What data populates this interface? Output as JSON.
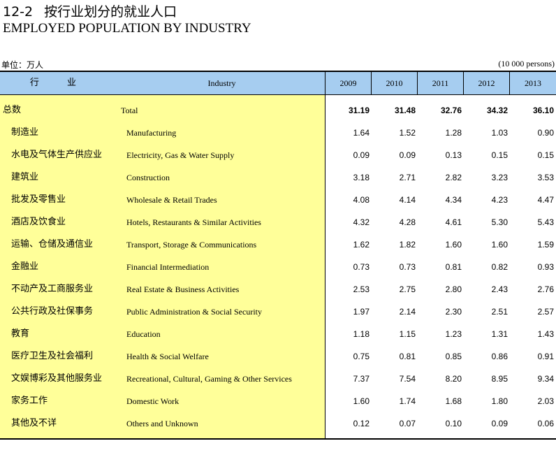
{
  "header": {
    "table_number": "12-2",
    "title_cn": "按行业划分的就业人口",
    "title_en": "EMPLOYED POPULATION BY INDUSTRY",
    "unit_cn": "单位：万人",
    "unit_en": "(10 000 persons)"
  },
  "columns": {
    "industry_cn": "行 业",
    "industry_en": "Industry",
    "years": [
      "2009",
      "2010",
      "2011",
      "2012",
      "2013"
    ]
  },
  "rows": [
    {
      "cn": "总数",
      "en": "Total",
      "values": [
        "31.19",
        "31.48",
        "32.76",
        "34.32",
        "36.10"
      ]
    },
    {
      "cn": "制造业",
      "en": "Manufacturing",
      "values": [
        "1.64",
        "1.52",
        "1.28",
        "1.03",
        "0.90"
      ]
    },
    {
      "cn": "水电及气体生产供应业",
      "en": "Electricity, Gas & Water Supply",
      "values": [
        "0.09",
        "0.09",
        "0.13",
        "0.15",
        "0.15"
      ]
    },
    {
      "cn": "建筑业",
      "en": "Construction",
      "values": [
        "3.18",
        "2.71",
        "2.82",
        "3.23",
        "3.53"
      ]
    },
    {
      "cn": "批发及零售业",
      "en": "Wholesale & Retail Trades",
      "values": [
        "4.08",
        "4.14",
        "4.34",
        "4.23",
        "4.47"
      ]
    },
    {
      "cn": "酒店及饮食业",
      "en": "Hotels, Restaurants & Similar Activities",
      "values": [
        "4.32",
        "4.28",
        "4.61",
        "5.30",
        "5.43"
      ]
    },
    {
      "cn": "运输、仓储及通信业",
      "en": "Transport, Storage & Communications",
      "values": [
        "1.62",
        "1.82",
        "1.60",
        "1.60",
        "1.59"
      ]
    },
    {
      "cn": "金融业",
      "en": "Financial Intermediation",
      "values": [
        "0.73",
        "0.73",
        "0.81",
        "0.82",
        "0.93"
      ]
    },
    {
      "cn": "不动产及工商服务业",
      "en": "Real Estate & Business Activities",
      "values": [
        "2.53",
        "2.75",
        "2.80",
        "2.43",
        "2.76"
      ]
    },
    {
      "cn": "公共行政及社保事务",
      "en": "Public Administration & Social Security",
      "values": [
        "1.97",
        "2.14",
        "2.30",
        "2.51",
        "2.57"
      ]
    },
    {
      "cn": "教育",
      "en": "Education",
      "values": [
        "1.18",
        "1.15",
        "1.23",
        "1.31",
        "1.43"
      ]
    },
    {
      "cn": "医疗卫生及社会福利",
      "en": "Health & Social Welfare",
      "values": [
        "0.75",
        "0.81",
        "0.85",
        "0.86",
        "0.91"
      ]
    },
    {
      "cn": "文娱博彩及其他服务业",
      "en": "Recreational, Cultural, Gaming & Other Services",
      "values": [
        "7.37",
        "7.54",
        "8.20",
        "8.95",
        "9.34"
      ]
    },
    {
      "cn": "家务工作",
      "en": "Domestic Work",
      "values": [
        "1.60",
        "1.74",
        "1.68",
        "1.80",
        "2.03"
      ]
    },
    {
      "cn": "其他及不详",
      "en": "Others and Unknown",
      "values": [
        "0.12",
        "0.07",
        "0.10",
        "0.09",
        "0.06"
      ]
    }
  ],
  "colors": {
    "header_bg": "#a6cdf0",
    "label_bg": "#ffff99"
  }
}
